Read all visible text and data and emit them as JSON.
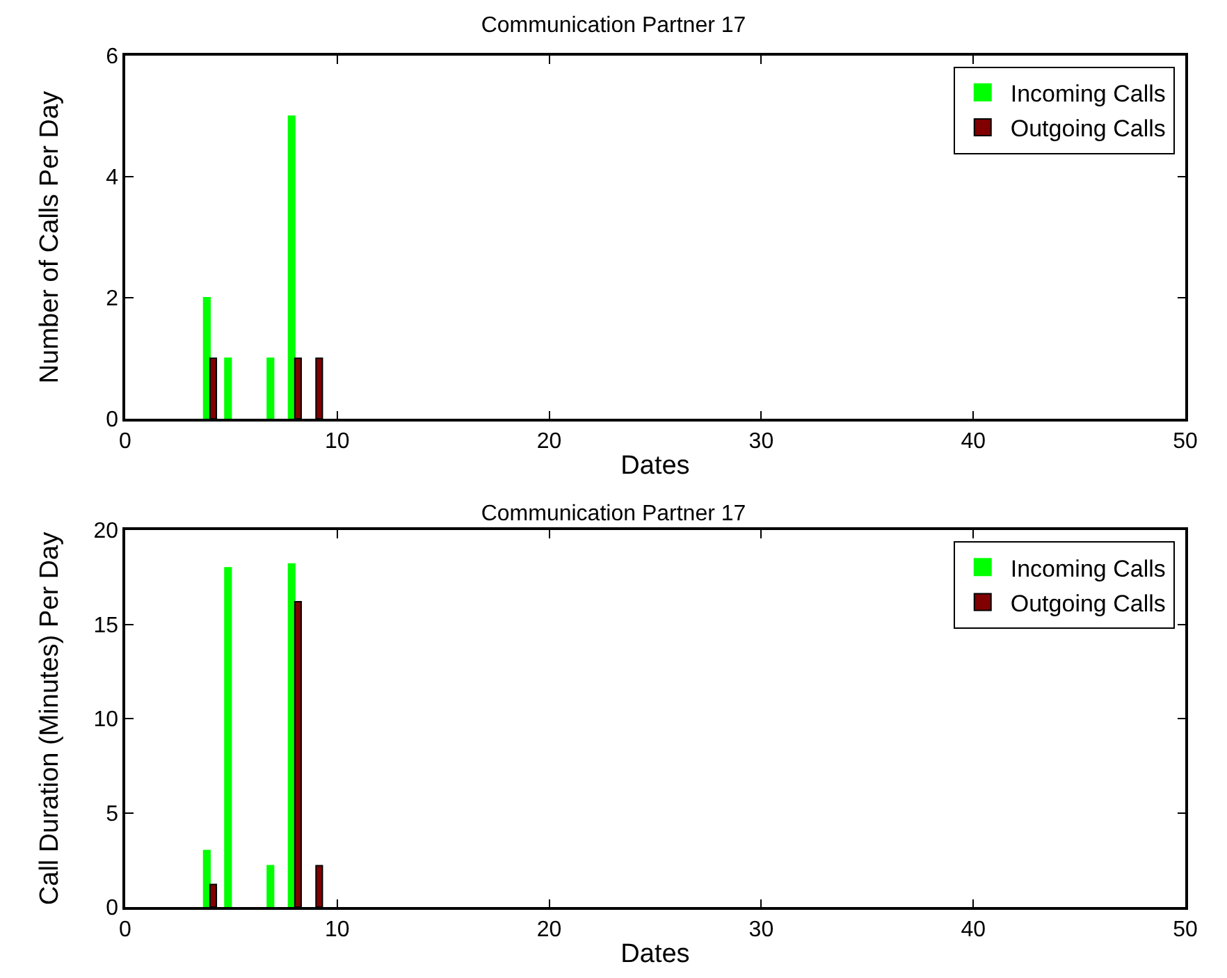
{
  "chart_data": [
    {
      "type": "bar",
      "title": "Communication Partner 17",
      "xlabel": "Dates",
      "ylabel": "Number of Calls Per Day",
      "x": [
        4,
        5,
        7,
        8,
        9
      ],
      "xlim": [
        0,
        50
      ],
      "xticks": [
        0,
        10,
        20,
        30,
        40,
        50
      ],
      "ylim": [
        0,
        6
      ],
      "yticks": [
        0,
        2,
        4,
        6
      ],
      "grid": false,
      "legend": "top right",
      "series": [
        {
          "name": "Incoming Calls",
          "color": "#00ff00",
          "values": [
            2,
            1,
            1,
            5,
            0
          ]
        },
        {
          "name": "Outgoing Calls",
          "color": "#800000",
          "values": [
            1,
            0,
            0,
            1,
            1
          ]
        }
      ]
    },
    {
      "type": "bar",
      "title": "Communication Partner 17",
      "xlabel": "Dates",
      "ylabel": "Call Duration (Minutes) Per Day",
      "x": [
        4,
        5,
        7,
        8,
        9
      ],
      "xlim": [
        0,
        50
      ],
      "xticks": [
        0,
        10,
        20,
        30,
        40,
        50
      ],
      "ylim": [
        0,
        20
      ],
      "yticks": [
        0,
        5,
        10,
        15,
        20
      ],
      "grid": false,
      "legend": "top right",
      "series": [
        {
          "name": "Incoming Calls",
          "color": "#00ff00",
          "values": [
            3,
            18,
            2.2,
            18.2,
            0
          ]
        },
        {
          "name": "Outgoing Calls",
          "color": "#800000",
          "values": [
            1.2,
            0,
            0,
            16.2,
            2.2
          ]
        }
      ]
    }
  ]
}
